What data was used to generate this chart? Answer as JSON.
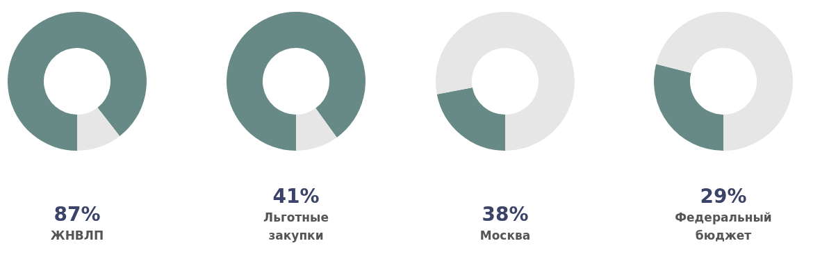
{
  "chart_data": [
    {
      "type": "donut",
      "categories": [
        null,
        null
      ],
      "values": [
        89.5,
        10.5
      ],
      "colors": [
        "#678a87",
        "#e6e6e6"
      ],
      "legend": false,
      "annotations": [
        "87%",
        "ЖНВЛП"
      ]
    },
    {
      "type": "donut",
      "categories": [
        null,
        null
      ],
      "values": [
        90,
        10
      ],
      "colors": [
        "#678a87",
        "#e6e6e6"
      ],
      "legend": false,
      "annotations": [
        "41%",
        "Льготные закупки"
      ]
    },
    {
      "type": "donut",
      "categories": [
        null,
        null
      ],
      "values": [
        22,
        78
      ],
      "colors": [
        "#678a87",
        "#e6e6e6"
      ],
      "legend": false,
      "annotations": [
        "38%",
        "Москва"
      ]
    },
    {
      "type": "donut",
      "categories": [
        null,
        null
      ],
      "values": [
        29,
        71
      ],
      "colors": [
        "#678a87",
        "#e6e6e6"
      ],
      "legend": false,
      "annotations": [
        "29%",
        "Федеральный бюджет"
      ]
    }
  ]
}
